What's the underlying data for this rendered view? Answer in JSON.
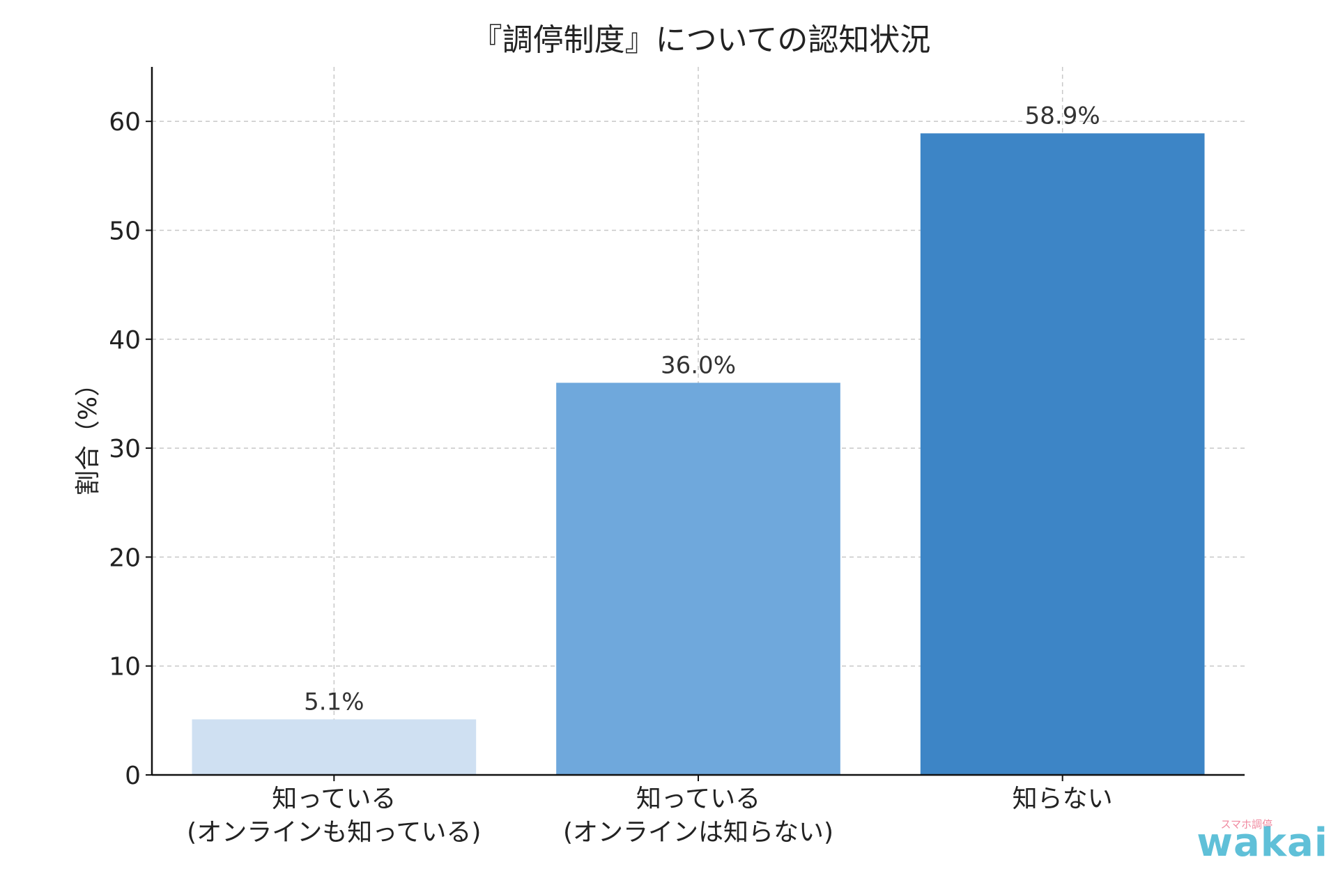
{
  "chart_data": {
    "type": "bar",
    "title": "『調停制度』についての認知状況",
    "ylabel": "割合（%）",
    "xlabel": "",
    "categories": [
      [
        "知っている",
        "(オンラインも知っている)"
      ],
      [
        "知っている",
        "(オンラインは知らない)"
      ],
      [
        "知らない"
      ]
    ],
    "values": [
      5.1,
      36.0,
      58.9
    ],
    "data_labels": [
      "5.1%",
      "36.0%",
      "58.9%"
    ],
    "bar_colors": [
      "#cfe0f2",
      "#6fa8dc",
      "#3d85c6"
    ],
    "ylim": [
      0,
      65
    ],
    "yticks": [
      0,
      10,
      20,
      30,
      40,
      50,
      60
    ],
    "grid": true
  },
  "watermark": {
    "small": "スマホ調停",
    "main": "wakai"
  }
}
